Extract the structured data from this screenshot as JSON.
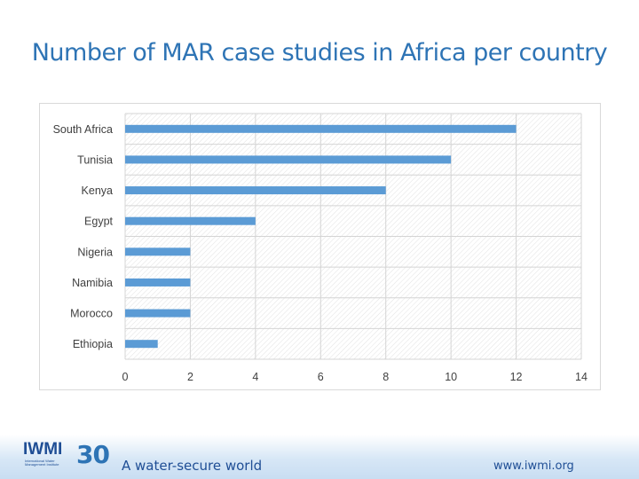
{
  "title": "Number of MAR case studies in Africa per country",
  "chart_data": {
    "type": "bar",
    "orientation": "horizontal",
    "categories": [
      "South Africa",
      "Tunisia",
      "Kenya",
      "Egypt",
      "Nigeria",
      "Namibia",
      "Morocco",
      "Ethiopia"
    ],
    "values": [
      12,
      10,
      8,
      4,
      2,
      2,
      2,
      1
    ],
    "xlim": [
      0,
      14
    ],
    "xticks": [
      "0",
      "2",
      "4",
      "6",
      "8",
      "10",
      "12",
      "14"
    ],
    "title": "",
    "xlabel": "",
    "ylabel": "",
    "grid": true,
    "bar_color": "#5b9bd5"
  },
  "footer": {
    "logo_text": "IWMI",
    "logo_subtext": "International Water Management Institute",
    "anniversary": "30",
    "tagline": "A water-secure world",
    "url": "www.iwmi.org"
  }
}
